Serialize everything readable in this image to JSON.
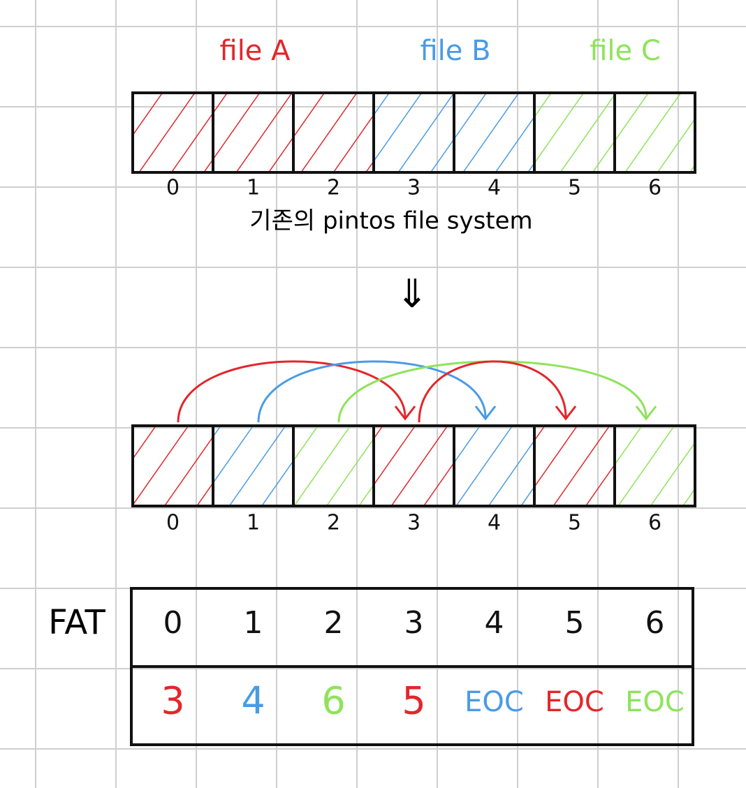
{
  "files": [
    {
      "label": "file A",
      "color": "#e3262b"
    },
    {
      "label": "file B",
      "color": "#4a9be6"
    },
    {
      "label": "file C",
      "color": "#8ee35a"
    }
  ],
  "top_blocks": {
    "indices": [
      "0",
      "1",
      "2",
      "3",
      "4",
      "5",
      "6"
    ],
    "owner": [
      0,
      0,
      0,
      1,
      1,
      2,
      2
    ]
  },
  "caption": "기존의 pintos file system",
  "bottom_blocks": {
    "indices": [
      "0",
      "1",
      "2",
      "3",
      "4",
      "5",
      "6"
    ],
    "owner": [
      0,
      1,
      2,
      0,
      1,
      0,
      2
    ]
  },
  "fat": {
    "title": "FAT",
    "header": [
      "0",
      "1",
      "2",
      "3",
      "4",
      "5",
      "6"
    ],
    "entries": [
      "3",
      "4",
      "6",
      "5",
      "EOC",
      "EOC",
      "EOC"
    ],
    "owner": [
      0,
      1,
      2,
      0,
      1,
      0,
      2
    ]
  }
}
